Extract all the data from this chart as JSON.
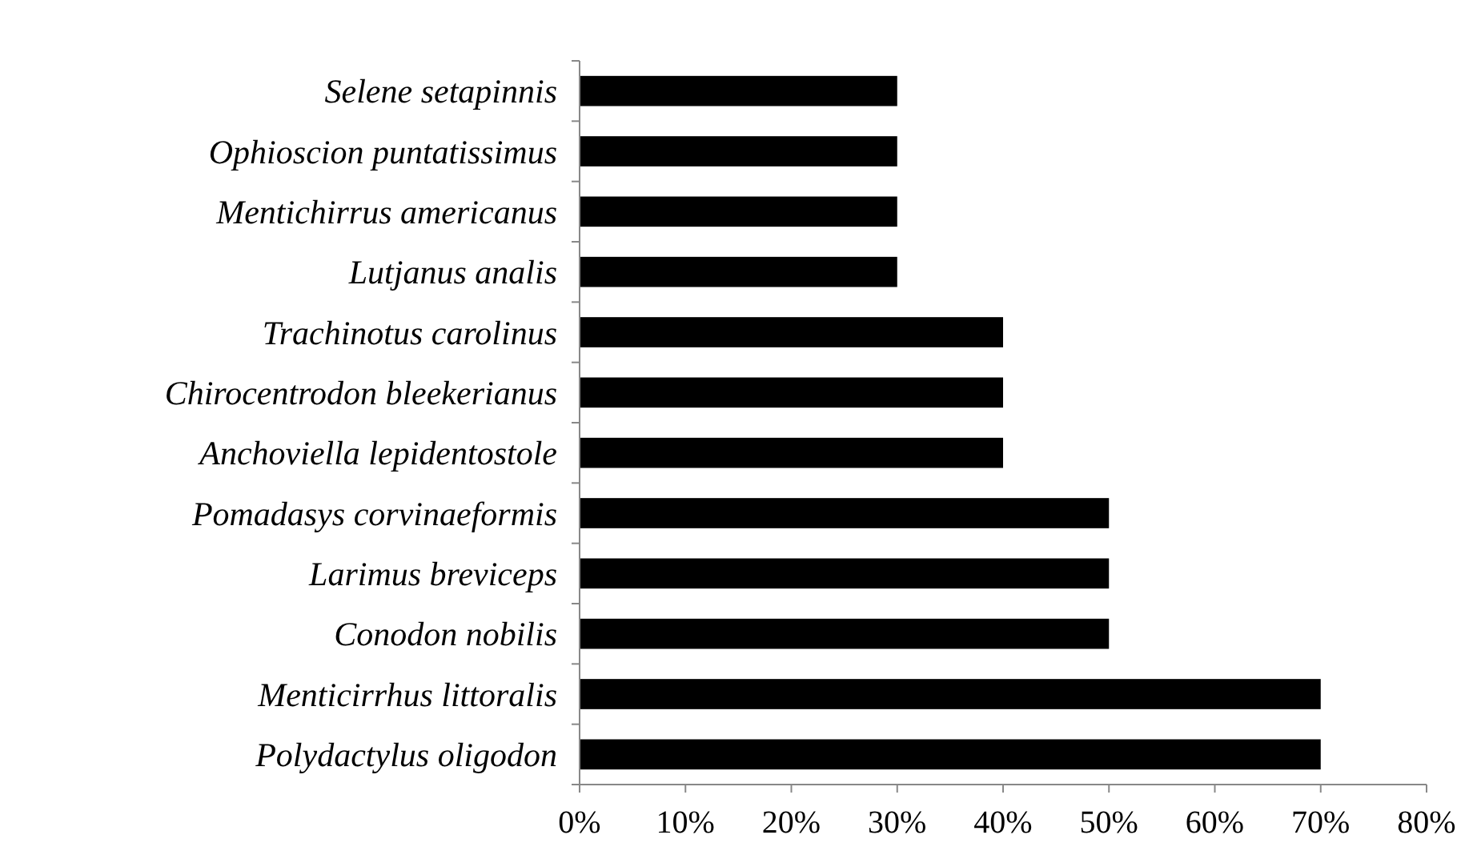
{
  "chart_data": {
    "type": "bar",
    "orientation": "horizontal",
    "categories": [
      "Selene setapinnis",
      "Ophioscion puntatissimus",
      "Mentichirrus americanus",
      "Lutjanus analis",
      "Trachinotus carolinus",
      "Chirocentrodon bleekerianus",
      "Anchoviella lepidentostole",
      "Pomadasys corvinaeformis",
      "Larimus breviceps",
      "Conodon nobilis",
      "Menticirrhus littoralis",
      "Polydactylus oligodon"
    ],
    "values": [
      30,
      30,
      30,
      30,
      40,
      40,
      40,
      50,
      50,
      50,
      70,
      70
    ],
    "color": "#000000",
    "xlim": [
      0,
      80
    ],
    "xticks": [
      {
        "value": 0,
        "label": "0%"
      },
      {
        "value": 10,
        "label": "10%"
      },
      {
        "value": 20,
        "label": "20%"
      },
      {
        "value": 30,
        "label": "30%"
      },
      {
        "value": 40,
        "label": "40%"
      },
      {
        "value": 50,
        "label": "50%"
      },
      {
        "value": 60,
        "label": "60%"
      },
      {
        "value": 70,
        "label": "70%"
      },
      {
        "value": 80,
        "label": "80%"
      }
    ],
    "grid": false
  }
}
